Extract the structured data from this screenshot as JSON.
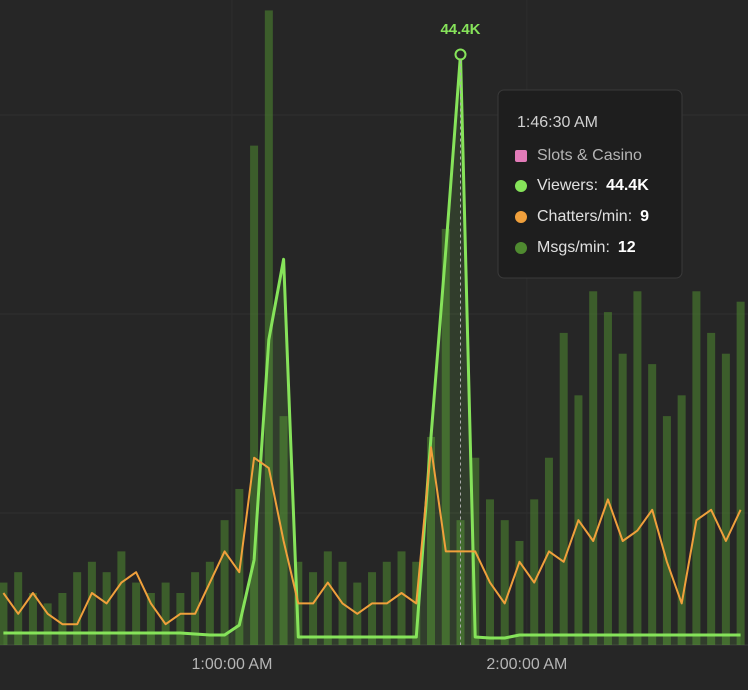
{
  "chart_data": {
    "type": "line",
    "x": [
      "0:13:30 AM",
      "0:16:30 AM",
      "0:19:30 AM",
      "0:22:30 AM",
      "0:25:30 AM",
      "0:28:30 AM",
      "0:31:30 AM",
      "0:34:30 AM",
      "0:37:30 AM",
      "0:40:30 AM",
      "0:43:30 AM",
      "0:46:30 AM",
      "0:49:30 AM",
      "0:52:30 AM",
      "0:55:30 AM",
      "0:58:30 AM",
      "1:01:30 AM",
      "1:04:30 AM",
      "1:07:30 AM",
      "1:10:30 AM",
      "1:13:30 AM",
      "1:16:30 AM",
      "1:19:30 AM",
      "1:22:30 AM",
      "1:25:30 AM",
      "1:28:30 AM",
      "1:31:30 AM",
      "1:34:30 AM",
      "1:37:30 AM",
      "1:40:30 AM",
      "1:43:30 AM",
      "1:46:30 AM",
      "1:49:30 AM",
      "1:52:30 AM",
      "1:55:30 AM",
      "1:58:30 AM",
      "2:01:30 AM",
      "2:04:30 AM",
      "2:07:30 AM",
      "2:10:30 AM",
      "2:13:30 AM",
      "2:16:30 AM",
      "2:19:30 AM",
      "2:22:30 AM",
      "2:25:30 AM",
      "2:28:30 AM",
      "2:31:30 AM",
      "2:34:30 AM",
      "2:37:30 AM",
      "2:40:30 AM",
      "2:43:30 AM"
    ],
    "xlim": [
      "0:12:48 AM",
      "2:45:00 AM"
    ],
    "xticks": [
      "1:00:00 AM",
      "2:00:00 AM"
    ],
    "ylim": [
      0,
      48500
    ],
    "y2lim": [
      0,
      62
    ],
    "series": [
      {
        "name": "Viewers:",
        "type": "line",
        "color": "#86e35a",
        "axis": "y",
        "values": [
          900,
          900,
          900,
          900,
          900,
          900,
          900,
          900,
          900,
          900,
          900,
          900,
          900,
          830,
          750,
          750,
          1500,
          6400,
          22950,
          29000,
          600,
          600,
          600,
          600,
          600,
          600,
          600,
          600,
          600,
          15650,
          29700,
          44400,
          600,
          530,
          530,
          750,
          750,
          750,
          750,
          750,
          750,
          750,
          750,
          750,
          750,
          750,
          750,
          750,
          750,
          750,
          750
        ]
      },
      {
        "name": "Chatters/min:",
        "type": "line",
        "color": "#f0a03c",
        "axis": "y2",
        "values": [
          5,
          3,
          5,
          3,
          2,
          2,
          5,
          4,
          6,
          7,
          4,
          2,
          3,
          3,
          6,
          9,
          7,
          18,
          17,
          10,
          4,
          4,
          6,
          4,
          3,
          4,
          4,
          5,
          4,
          19,
          9,
          9,
          9,
          6,
          4,
          8,
          6,
          9,
          8,
          12,
          10,
          14,
          10,
          11,
          13,
          8,
          4,
          12,
          13,
          10,
          13
        ]
      },
      {
        "name": "Msgs/min:",
        "type": "bar",
        "color": "#4f8a30",
        "axis": "y2",
        "values": [
          6,
          7,
          5,
          4,
          5,
          7,
          8,
          7,
          9,
          6,
          5,
          6,
          5,
          7,
          8,
          12,
          15,
          48,
          61,
          22,
          8,
          7,
          9,
          8,
          6,
          7,
          8,
          9,
          8,
          20,
          40,
          12,
          18,
          14,
          12,
          10,
          14,
          18,
          30,
          24,
          34,
          32,
          28,
          34,
          27,
          22,
          24,
          34,
          30,
          28,
          33
        ]
      }
    ],
    "annotation": {
      "x": "1:46:30 AM",
      "text": "44.4K"
    },
    "tooltip": {
      "time": "1:46:30 AM",
      "category": "Slots & Casino",
      "category_color": "#e27bb8",
      "entries": [
        {
          "label": "Viewers:",
          "value": "44.4K"
        },
        {
          "label": "Chatters/min:",
          "value": "9"
        },
        {
          "label": "Msgs/min:",
          "value": "12"
        }
      ]
    }
  }
}
